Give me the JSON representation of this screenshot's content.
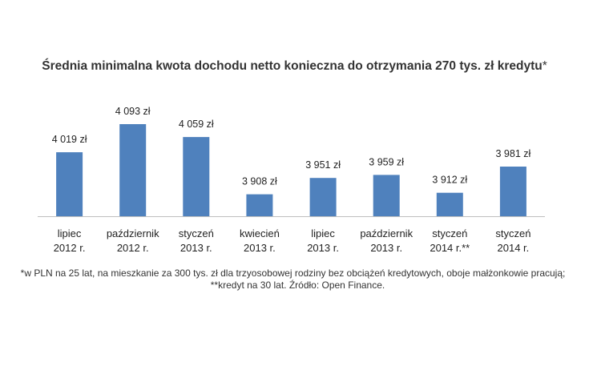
{
  "chart_data": {
    "type": "bar",
    "title": "Średnia minimalna kwota dochodu netto konieczna do otrzymania 270 tys. zł kredytu",
    "title_suffix": "*",
    "categories": [
      [
        "lipiec",
        "2012 r."
      ],
      [
        "październik",
        "2012 r."
      ],
      [
        "styczeń",
        "2013 r."
      ],
      [
        "kwiecień",
        "2013 r."
      ],
      [
        "lipiec",
        "2013 r."
      ],
      [
        "październik",
        "2013 r."
      ],
      [
        "styczeń",
        "2014 r.**"
      ],
      [
        "styczeń",
        "2014 r."
      ]
    ],
    "values": [
      4019,
      4093,
      4059,
      3908,
      3951,
      3959,
      3912,
      3981
    ],
    "data_labels": [
      "4 019 zł",
      "4 093 zł",
      "4 059 zł",
      "3 908 zł",
      "3 951 zł",
      "3 959 zł",
      "3 912 zł",
      "3 981 zł"
    ],
    "ylim": [
      3850,
      4110
    ],
    "bar_color": "#4f81bd",
    "axis_color": "#bfbfbf",
    "grid": false,
    "legend": "none"
  },
  "footnotes": [
    "*w PLN na 25 lat, na mieszkanie za 300 tys. zł dla trzyosobowej rodziny bez obciążeń kredytowych, oboje małżonkowie pracują;",
    "**kredyt na 30 lat. Źródło: Open Finance."
  ]
}
